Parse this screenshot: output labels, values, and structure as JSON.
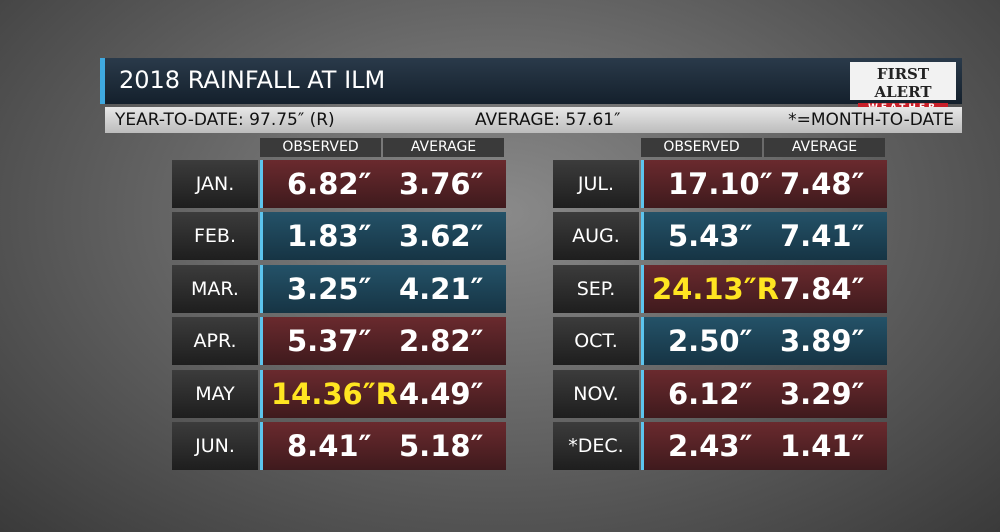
{
  "header": {
    "title": "2018 RAINFALL AT ILM",
    "logo_top": "FIRST ALERT",
    "logo_bottom": "WEATHER"
  },
  "subheader": {
    "year_to_date": "YEAR-TO-DATE: 97.75″ (R)",
    "average": "AVERAGE: 57.61″",
    "note": "*=MONTH-TO-DATE"
  },
  "tables": [
    {
      "columns": [
        "OBSERVED",
        "AVERAGE"
      ],
      "rows": [
        {
          "month": "JAN.",
          "observed": "6.82″",
          "average": "3.76″",
          "tone": "red",
          "record": false
        },
        {
          "month": "FEB.",
          "observed": "1.83″",
          "average": "3.62″",
          "tone": "blue",
          "record": false
        },
        {
          "month": "MAR.",
          "observed": "3.25″",
          "average": "4.21″",
          "tone": "blue",
          "record": false
        },
        {
          "month": "APR.",
          "observed": "5.37″",
          "average": "2.82″",
          "tone": "red",
          "record": false
        },
        {
          "month": "MAY",
          "observed": "14.36″R",
          "average": "4.49″",
          "tone": "red",
          "record": true
        },
        {
          "month": "JUN.",
          "observed": "8.41″",
          "average": "5.18″",
          "tone": "red",
          "record": false
        }
      ]
    },
    {
      "columns": [
        "OBSERVED",
        "AVERAGE"
      ],
      "rows": [
        {
          "month": "JUL.",
          "observed": "17.10″",
          "average": "7.48″",
          "tone": "red",
          "record": false
        },
        {
          "month": "AUG.",
          "observed": "5.43″",
          "average": "7.41″",
          "tone": "blue",
          "record": false
        },
        {
          "month": "SEP.",
          "observed": "24.13″R",
          "average": "7.84″",
          "tone": "red",
          "record": true
        },
        {
          "month": "OCT.",
          "observed": "2.50″",
          "average": "3.89″",
          "tone": "blue",
          "record": false
        },
        {
          "month": "NOV.",
          "observed": "6.12″",
          "average": "3.29″",
          "tone": "red",
          "record": false
        },
        {
          "month": "*DEC.",
          "observed": "2.43″",
          "average": "1.41″",
          "tone": "red",
          "record": false
        }
      ]
    }
  ]
}
